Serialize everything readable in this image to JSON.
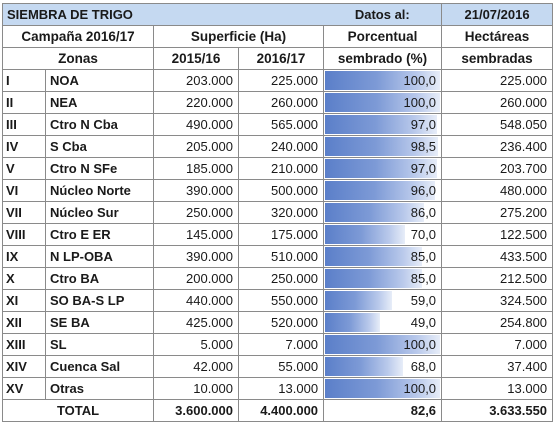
{
  "header": {
    "title": "SIEMBRA DE TRIGO",
    "datos_label": "Datos al:",
    "date": "21/07/2016"
  },
  "columns": {
    "campana": "Campaña 2016/17",
    "superficie": "Superficie (Ha)",
    "porcentual_1": "Porcentual",
    "porcentual_2": "sembrado (%)",
    "hectareas_1": "Hectáreas",
    "hectareas_2": "sembradas",
    "zonas": "Zonas",
    "year1": "2015/16",
    "year2": "2016/17"
  },
  "rows": [
    {
      "roman": "I",
      "zona": "NOA",
      "s2015": "203.000",
      "s2016": "225.000",
      "pct_label": "100,0",
      "pct": 100.0,
      "sembradas": "225.000"
    },
    {
      "roman": "II",
      "zona": "NEA",
      "s2015": "220.000",
      "s2016": "260.000",
      "pct_label": "100,0",
      "pct": 100.0,
      "sembradas": "260.000"
    },
    {
      "roman": "III",
      "zona": "Ctro N Cba",
      "s2015": "490.000",
      "s2016": "565.000",
      "pct_label": "97,0",
      "pct": 97.0,
      "sembradas": "548.050"
    },
    {
      "roman": "IV",
      "zona": "S Cba",
      "s2015": "205.000",
      "s2016": "240.000",
      "pct_label": "98,5",
      "pct": 98.5,
      "sembradas": "236.400"
    },
    {
      "roman": "V",
      "zona": "Ctro N SFe",
      "s2015": "185.000",
      "s2016": "210.000",
      "pct_label": "97,0",
      "pct": 97.0,
      "sembradas": "203.700"
    },
    {
      "roman": "VI",
      "zona": "Núcleo Norte",
      "s2015": "390.000",
      "s2016": "500.000",
      "pct_label": "96,0",
      "pct": 96.0,
      "sembradas": "480.000"
    },
    {
      "roman": "VII",
      "zona": "Núcleo Sur",
      "s2015": "250.000",
      "s2016": "320.000",
      "pct_label": "86,0",
      "pct": 86.0,
      "sembradas": "275.200"
    },
    {
      "roman": "VIII",
      "zona": "Ctro E ER",
      "s2015": "145.000",
      "s2016": "175.000",
      "pct_label": "70,0",
      "pct": 70.0,
      "sembradas": "122.500"
    },
    {
      "roman": "IX",
      "zona": "N LP-OBA",
      "s2015": "390.000",
      "s2016": "510.000",
      "pct_label": "85,0",
      "pct": 85.0,
      "sembradas": "433.500"
    },
    {
      "roman": "X",
      "zona": "Ctro BA",
      "s2015": "200.000",
      "s2016": "250.000",
      "pct_label": "85,0",
      "pct": 85.0,
      "sembradas": "212.500"
    },
    {
      "roman": "XI",
      "zona": "SO BA-S LP",
      "s2015": "440.000",
      "s2016": "550.000",
      "pct_label": "59,0",
      "pct": 59.0,
      "sembradas": "324.500"
    },
    {
      "roman": "XII",
      "zona": "SE BA",
      "s2015": "425.000",
      "s2016": "520.000",
      "pct_label": "49,0",
      "pct": 49.0,
      "sembradas": "254.800"
    },
    {
      "roman": "XIII",
      "zona": "SL",
      "s2015": "5.000",
      "s2016": "7.000",
      "pct_label": "100,0",
      "pct": 100.0,
      "sembradas": "7.000"
    },
    {
      "roman": "XIV",
      "zona": "Cuenca Sal",
      "s2015": "42.000",
      "s2016": "55.000",
      "pct_label": "68,0",
      "pct": 68.0,
      "sembradas": "37.400"
    },
    {
      "roman": "XV",
      "zona": "Otras",
      "s2015": "10.000",
      "s2016": "13.000",
      "pct_label": "100,0",
      "pct": 100.0,
      "sembradas": "13.000"
    }
  ],
  "total": {
    "label": "TOTAL",
    "s2015": "3.600.000",
    "s2016": "4.400.000",
    "pct_label": "82,6",
    "pct": 82.6,
    "sembradas": "3.633.550"
  },
  "colors": {
    "title_band": "#c5d9f1",
    "bar": "#5b7fc9",
    "grid": "#8a8a8a"
  }
}
